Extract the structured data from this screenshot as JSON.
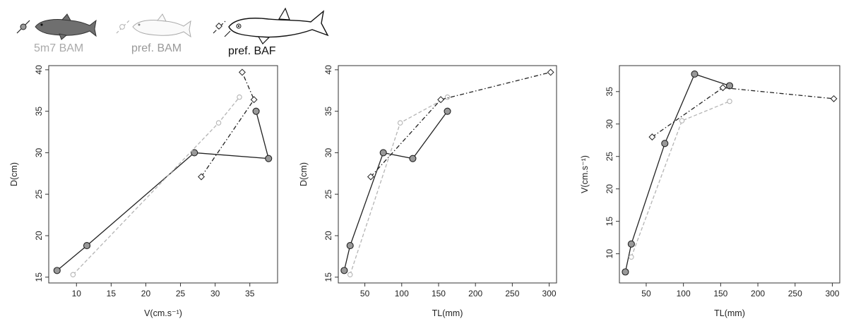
{
  "legend": [
    {
      "label": "5m7 BAM",
      "color": "#aaaaaa",
      "marker": "circle-filled",
      "line": "solid"
    },
    {
      "label": "pref. BAM",
      "color": "#aaaaaa",
      "marker": "circle-open",
      "line": "dashed"
    },
    {
      "label": "pref. BAF",
      "color": "#111111",
      "marker": "diamond-open",
      "line": "dotdash"
    }
  ],
  "series_styles": {
    "5m7 BAM": {
      "line_color": "#222222",
      "marker_fill": "#999999",
      "marker_stroke": "#222222"
    },
    "pref. BAM": {
      "line_color": "#b4b4b4",
      "marker_fill": "#ffffff",
      "marker_stroke": "#b4b4b4"
    },
    "pref. BAF": {
      "line_color": "#222222",
      "marker_fill": "#ffffff",
      "marker_stroke": "#222222"
    }
  },
  "icons": [
    "gudgeon-fish-dark-icon",
    "gudgeon-fish-outline-icon",
    "barbel-fish-outline-icon"
  ],
  "chart_data": [
    {
      "type": "line",
      "xlabel": "V(cm.s⁻¹)",
      "ylabel": "D(cm)",
      "xlim": [
        6,
        39
      ],
      "ylim": [
        14.3,
        40.5
      ],
      "xticks": [
        10,
        15,
        20,
        25,
        30,
        35
      ],
      "yticks": [
        15,
        20,
        25,
        30,
        35,
        40
      ],
      "series": [
        {
          "name": "5m7 BAM",
          "points": [
            [
              7.2,
              15.8
            ],
            [
              11.5,
              18.8
            ],
            [
              27,
              30
            ],
            [
              37.7,
              29.3
            ],
            [
              35.9,
              35
            ]
          ]
        },
        {
          "name": "pref. BAM",
          "points": [
            [
              9.5,
              15.3
            ],
            [
              30.5,
              33.6
            ],
            [
              33.5,
              36.7
            ]
          ]
        },
        {
          "name": "pref. BAF",
          "points": [
            [
              28,
              27.1
            ],
            [
              35.6,
              36.4
            ],
            [
              33.9,
              39.7
            ]
          ]
        }
      ]
    },
    {
      "type": "line",
      "xlabel": "TL(mm)",
      "ylabel": "D(cm)",
      "xlim": [
        14,
        310
      ],
      "ylim": [
        14.3,
        40.5
      ],
      "xticks": [
        50,
        100,
        150,
        200,
        250,
        300
      ],
      "yticks": [
        15,
        20,
        25,
        30,
        35,
        40
      ],
      "series": [
        {
          "name": "5m7 BAM",
          "points": [
            [
              22,
              15.8
            ],
            [
              30,
              18.8
            ],
            [
              75,
              30
            ],
            [
              115,
              29.3
            ],
            [
              162,
              35
            ]
          ]
        },
        {
          "name": "pref. BAM",
          "points": [
            [
              30,
              15.3
            ],
            [
              98,
              33.6
            ],
            [
              162,
              36.7
            ]
          ]
        },
        {
          "name": "pref. BAF",
          "points": [
            [
              58,
              27.1
            ],
            [
              153,
              36.4
            ],
            [
              302,
              39.7
            ]
          ]
        }
      ]
    },
    {
      "type": "line",
      "xlabel": "TL(mm)",
      "ylabel": "V(cm.s⁻¹)",
      "xlim": [
        14,
        310
      ],
      "ylim": [
        5.5,
        39
      ],
      "xticks": [
        50,
        100,
        150,
        200,
        250,
        300
      ],
      "yticks": [
        10,
        15,
        20,
        25,
        30,
        35
      ],
      "series": [
        {
          "name": "5m7 BAM",
          "points": [
            [
              22,
              7.2
            ],
            [
              30,
              11.5
            ],
            [
              75,
              27
            ],
            [
              115,
              37.7
            ],
            [
              162,
              35.9
            ]
          ]
        },
        {
          "name": "pref. BAM",
          "points": [
            [
              30,
              9.5
            ],
            [
              98,
              30.5
            ],
            [
              162,
              33.5
            ]
          ]
        },
        {
          "name": "pref. BAF",
          "points": [
            [
              58,
              28
            ],
            [
              153,
              35.6
            ],
            [
              302,
              33.9
            ]
          ]
        }
      ]
    }
  ]
}
